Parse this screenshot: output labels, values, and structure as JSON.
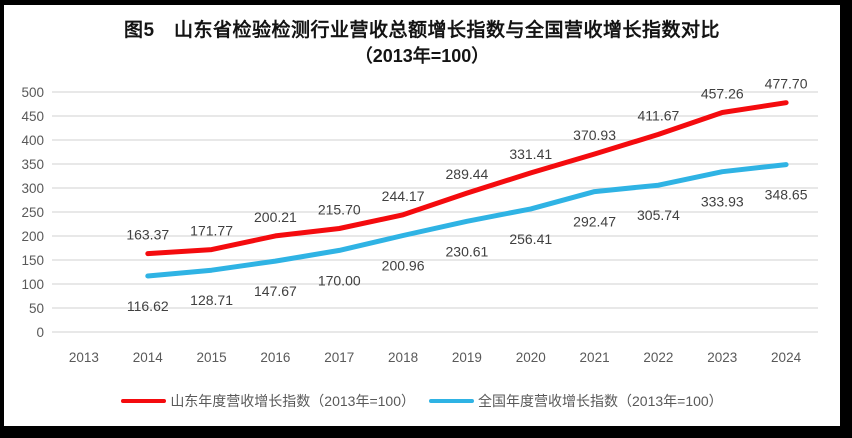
{
  "title": {
    "line1": "图5　山东省检验检测行业营收总额增长指数与全国营收增长指数对比",
    "line2": "（2013年=100）"
  },
  "chart_data": {
    "type": "line",
    "categories": [
      2013,
      2014,
      2015,
      2016,
      2017,
      2018,
      2019,
      2020,
      2021,
      2022,
      2023,
      2024
    ],
    "series": [
      {
        "id": "shandong",
        "name": "山东年度营收增长指数（2013年=100）",
        "color": "#F40B0E",
        "label_position": "above",
        "points": [
          {
            "x": 2014,
            "y": 163.37
          },
          {
            "x": 2015,
            "y": 171.77
          },
          {
            "x": 2016,
            "y": 200.21
          },
          {
            "x": 2017,
            "y": 215.7
          },
          {
            "x": 2018,
            "y": 244.17
          },
          {
            "x": 2019,
            "y": 289.44
          },
          {
            "x": 2020,
            "y": 331.41
          },
          {
            "x": 2021,
            "y": 370.93
          },
          {
            "x": 2022,
            "y": 411.67
          },
          {
            "x": 2023,
            "y": 457.26
          },
          {
            "x": 2024,
            "y": 477.7
          }
        ]
      },
      {
        "id": "national",
        "name": "全国年度营收增长指数（2013年=100）",
        "color": "#2FB3E4",
        "label_position": "below",
        "points": [
          {
            "x": 2014,
            "y": 116.62
          },
          {
            "x": 2015,
            "y": 128.71
          },
          {
            "x": 2016,
            "y": 147.67
          },
          {
            "x": 2017,
            "y": 170.0
          },
          {
            "x": 2018,
            "y": 200.96
          },
          {
            "x": 2019,
            "y": 230.61
          },
          {
            "x": 2020,
            "y": 256.41
          },
          {
            "x": 2021,
            "y": 292.47
          },
          {
            "x": 2022,
            "y": 305.74
          },
          {
            "x": 2023,
            "y": 333.93
          },
          {
            "x": 2024,
            "y": 348.65
          }
        ]
      }
    ],
    "ylim": [
      0,
      500
    ],
    "ytick_step": 50,
    "grid": true,
    "grid_color": "#D9D9D9",
    "legend_position": "bottom",
    "xlabel": "",
    "ylabel": ""
  },
  "legend": {
    "items": [
      {
        "label": "山东年度营收增长指数（2013年=100）"
      },
      {
        "label": "全国年度营收增长指数（2013年=100）"
      }
    ]
  },
  "frame": {
    "border_color": "#000000"
  }
}
